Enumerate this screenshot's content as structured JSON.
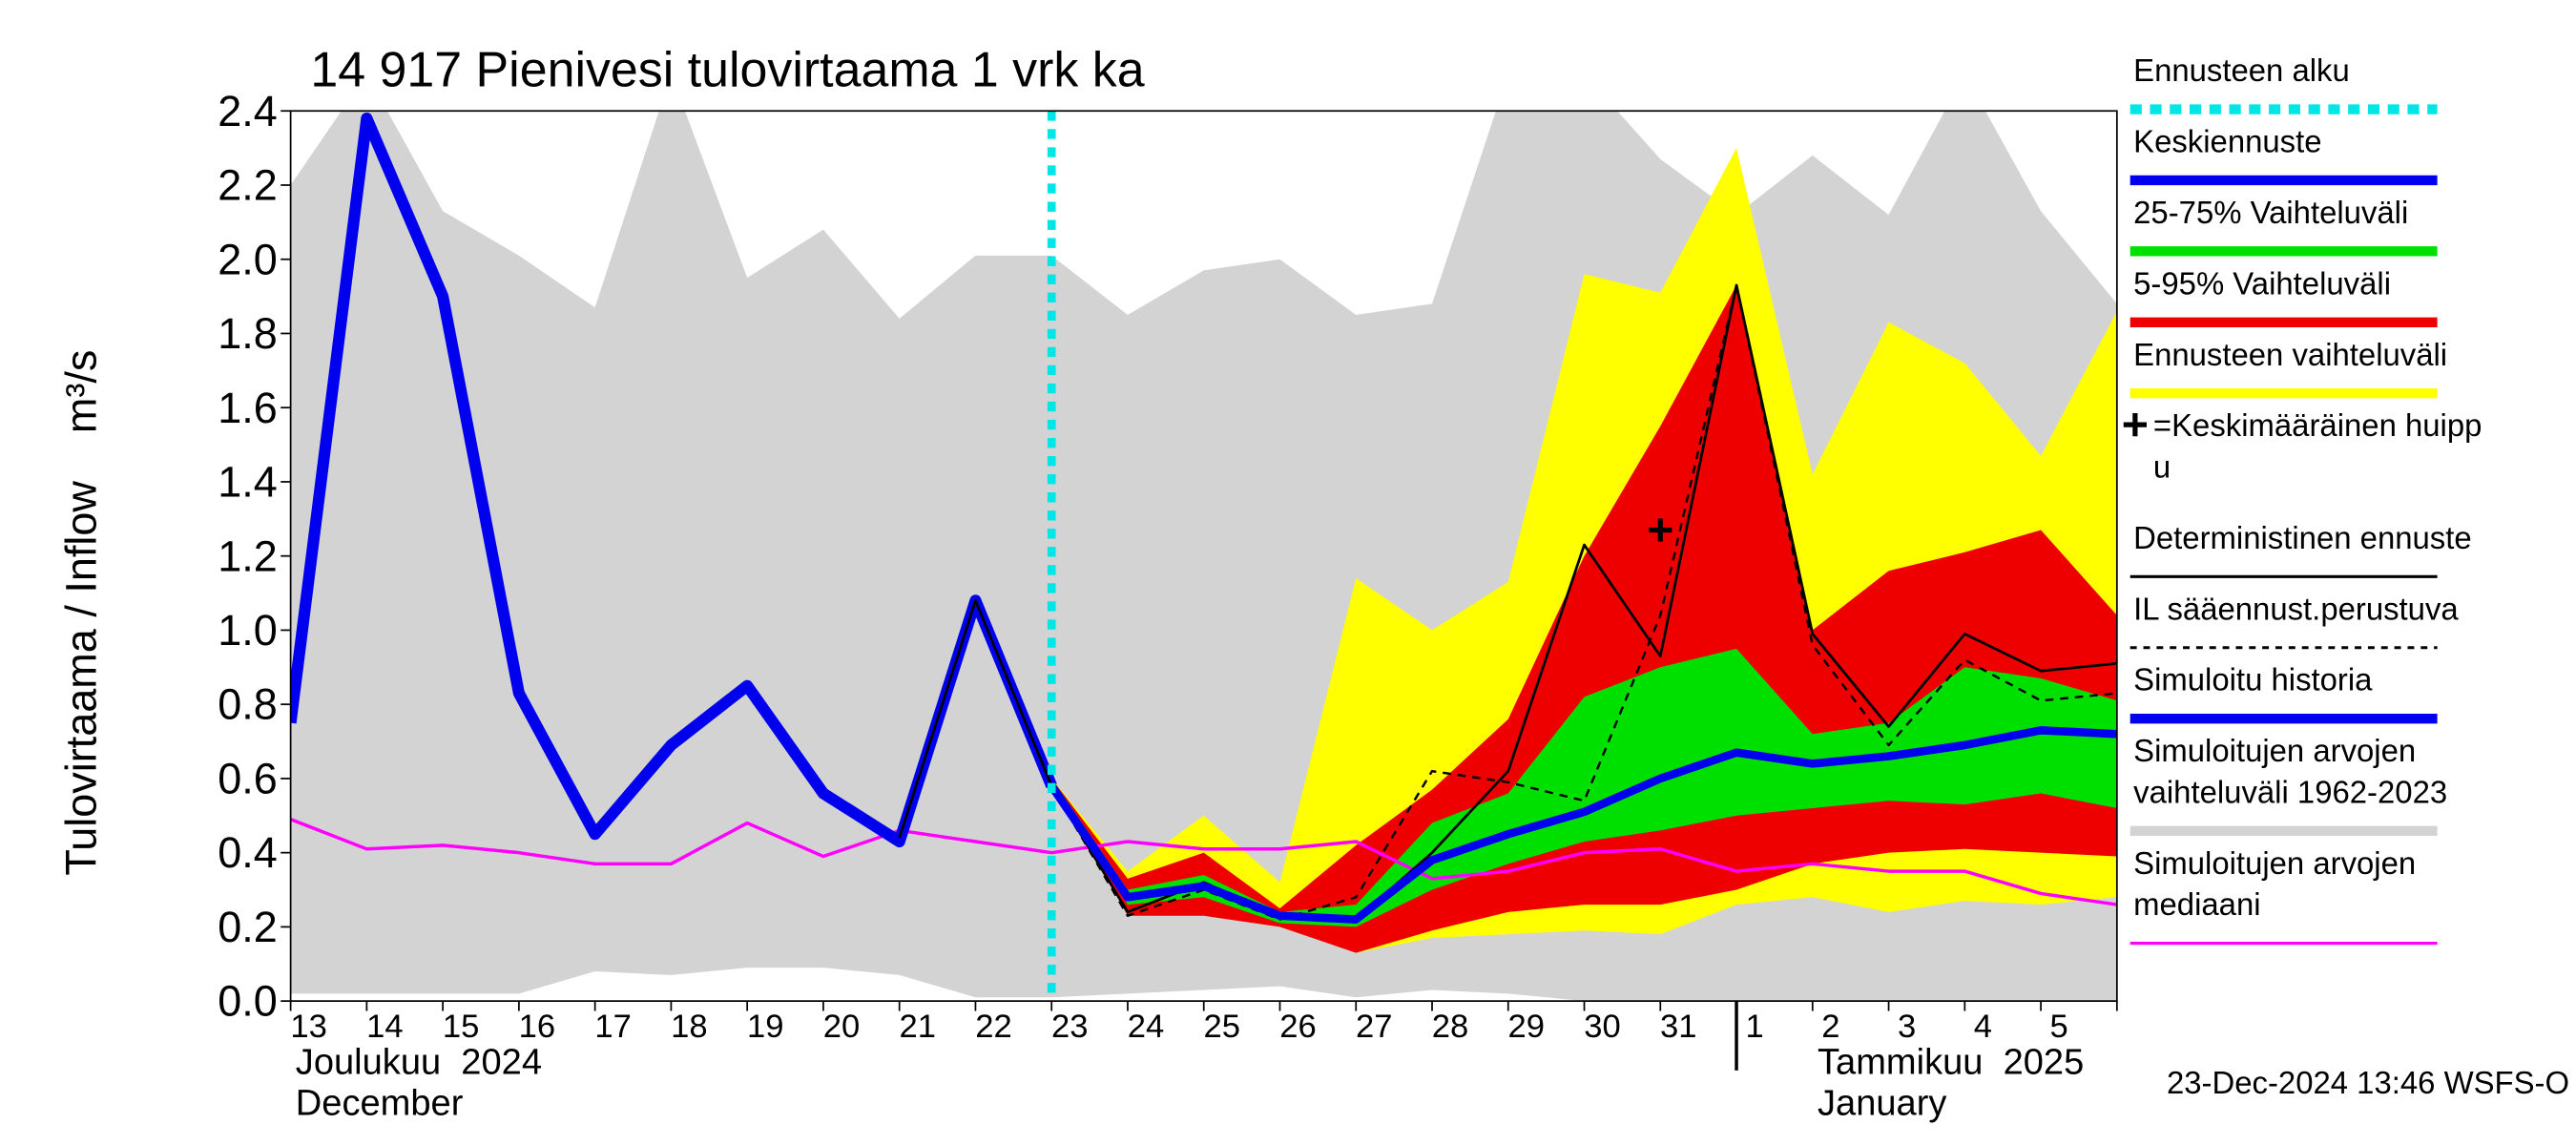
{
  "chart_data": {
    "type": "line",
    "title": "14 917 Pienivesi tulovirtaama 1 vrk ka",
    "ylabel": "Tulovirtaama / Inflow    m³/s",
    "categories": [
      "13",
      "14",
      "15",
      "16",
      "17",
      "18",
      "19",
      "20",
      "21",
      "22",
      "23",
      "24",
      "25",
      "26",
      "27",
      "28",
      "29",
      "30",
      "31",
      "1",
      "2",
      "3",
      "4",
      "5",
      null
    ],
    "months": [
      {
        "at": "13",
        "lines": [
          "Joulukuu  2024",
          "December"
        ]
      },
      {
        "at": "2",
        "lines": [
          "Tammikuu  2025",
          "January"
        ]
      }
    ],
    "month_break": "1",
    "footer": "23-Dec-2024 13:46 WSFS-O",
    "ylim": [
      0,
      2.4
    ],
    "yticks": [
      {
        "value": 0,
        "label": "0.0"
      },
      0.2,
      0.4,
      0.6,
      0.8,
      {
        "value": 1,
        "label": "1.0"
      },
      1.2,
      1.4,
      1.6,
      1.8,
      {
        "value": 2,
        "label": "2.0"
      },
      2.2,
      2.4
    ],
    "series": [
      {
        "name": [
          "Ennusteen alku"
        ],
        "kind": "vline",
        "color": "#00e5e5",
        "linestyle": "dotted",
        "x": "23"
      },
      {
        "name": [
          "Keskiennuste"
        ],
        "kind": "line",
        "color": "#0000ee",
        "values": [
          null,
          null,
          null,
          null,
          null,
          null,
          null,
          null,
          null,
          null,
          0.58,
          0.28,
          0.31,
          0.23,
          0.22,
          0.38,
          0.45,
          0.51,
          0.6,
          0.67,
          0.64,
          0.66,
          0.69,
          0.73,
          0.72
        ]
      },
      {
        "name": [
          "25-75% Vaihteluväli"
        ],
        "kind": "band",
        "color": "#00e000",
        "upper": [
          null,
          null,
          null,
          null,
          null,
          null,
          null,
          null,
          null,
          null,
          0.6,
          0.3,
          0.34,
          0.24,
          0.26,
          0.48,
          0.56,
          0.82,
          0.9,
          0.95,
          0.72,
          0.75,
          0.9,
          0.87,
          0.81
        ],
        "lower": [
          null,
          null,
          null,
          null,
          null,
          null,
          null,
          null,
          null,
          null,
          0.6,
          0.26,
          0.28,
          0.21,
          0.2,
          0.3,
          0.37,
          0.43,
          0.46,
          0.5,
          0.52,
          0.54,
          0.53,
          0.56,
          0.52
        ]
      },
      {
        "name": [
          "5-95% Vaihteluväli"
        ],
        "kind": "band",
        "color": "#ee0000",
        "upper": [
          null,
          null,
          null,
          null,
          null,
          null,
          null,
          null,
          null,
          null,
          0.6,
          0.33,
          0.4,
          0.25,
          0.42,
          0.57,
          0.76,
          1.2,
          1.55,
          1.93,
          1.0,
          1.16,
          1.21,
          1.27,
          1.04
        ],
        "lower": [
          null,
          null,
          null,
          null,
          null,
          null,
          null,
          null,
          null,
          null,
          0.6,
          0.23,
          0.23,
          0.2,
          0.13,
          0.19,
          0.24,
          0.26,
          0.26,
          0.3,
          0.37,
          0.4,
          0.41,
          0.4,
          0.39
        ]
      },
      {
        "name": [
          "Ennusteen vaihteluväli"
        ],
        "kind": "band",
        "color": "#ffff00",
        "upper": [
          null,
          null,
          null,
          null,
          null,
          null,
          null,
          null,
          null,
          null,
          0.6,
          0.35,
          0.5,
          0.32,
          1.14,
          1.0,
          1.13,
          1.96,
          1.91,
          2.3,
          1.42,
          1.83,
          1.72,
          1.47,
          1.86
        ],
        "lower": [
          null,
          null,
          null,
          null,
          null,
          null,
          null,
          null,
          null,
          null,
          0.6,
          0.25,
          0.26,
          0.22,
          0.13,
          0.17,
          0.18,
          0.19,
          0.18,
          0.26,
          0.28,
          0.24,
          0.27,
          0.26,
          0.28
        ]
      },
      {
        "name": [
          "=Keskimääräinen huipp",
          "u"
        ],
        "kind": "marker",
        "color": "#000000",
        "x": "31",
        "value": 1.27
      },
      {
        "name": [
          "Deterministinen ennuste"
        ],
        "kind": "line",
        "color": "#000000",
        "values": [
          null,
          null,
          null,
          null,
          null,
          null,
          null,
          null,
          0.44,
          1.08,
          0.58,
          0.24,
          0.32,
          0.23,
          0.22,
          0.4,
          0.62,
          1.23,
          0.93,
          1.93,
          0.99,
          0.74,
          0.99,
          0.89,
          0.91
        ]
      },
      {
        "name": [
          "IL sääennust.perustuva"
        ],
        "kind": "line",
        "color": "#000000",
        "linestyle": "dashed",
        "values": [
          null,
          null,
          null,
          null,
          null,
          null,
          null,
          null,
          null,
          null,
          0.58,
          0.23,
          0.3,
          0.22,
          0.28,
          0.62,
          0.59,
          0.54,
          1.04,
          1.93,
          0.96,
          0.69,
          0.92,
          0.81,
          0.83
        ]
      },
      {
        "name": [
          "Simuloitu historia"
        ],
        "kind": "line",
        "color": "#0000ee",
        "values": [
          0.75,
          2.38,
          1.9,
          0.83,
          0.45,
          0.69,
          0.85,
          0.56,
          0.43,
          1.08,
          0.58,
          null,
          null,
          null,
          null,
          null,
          null,
          null,
          null,
          null,
          null,
          null,
          null,
          null,
          null
        ]
      },
      {
        "name": [
          "Simuloitujen arvojen",
          "vaihteluväli 1962-2023"
        ],
        "kind": "band",
        "color": "#d3d3d3",
        "upper": [
          2.2,
          2.5,
          2.13,
          2.01,
          1.87,
          2.5,
          1.95,
          2.08,
          1.84,
          2.01,
          2.01,
          1.85,
          1.97,
          2.0,
          1.85,
          1.88,
          2.5,
          2.5,
          2.27,
          2.12,
          2.28,
          2.12,
          2.5,
          2.13,
          1.88
        ],
        "lower": [
          0.02,
          0.02,
          0.02,
          0.02,
          0.08,
          0.07,
          0.09,
          0.09,
          0.07,
          0.01,
          0.01,
          0.02,
          0.03,
          0.04,
          0.01,
          0.03,
          0.02,
          0,
          0,
          0,
          0,
          0,
          0,
          0,
          0
        ]
      },
      {
        "name": [
          "Simuloitujen arvojen",
          "mediaani"
        ],
        "kind": "line",
        "color": "#ff00ff",
        "values": [
          0.49,
          0.41,
          0.42,
          0.4,
          0.37,
          0.37,
          0.48,
          0.39,
          0.46,
          0.43,
          0.4,
          0.43,
          0.41,
          0.41,
          0.43,
          0.33,
          0.35,
          0.4,
          0.41,
          0.35,
          0.37,
          0.35,
          0.35,
          0.29,
          0.26
        ]
      }
    ]
  }
}
